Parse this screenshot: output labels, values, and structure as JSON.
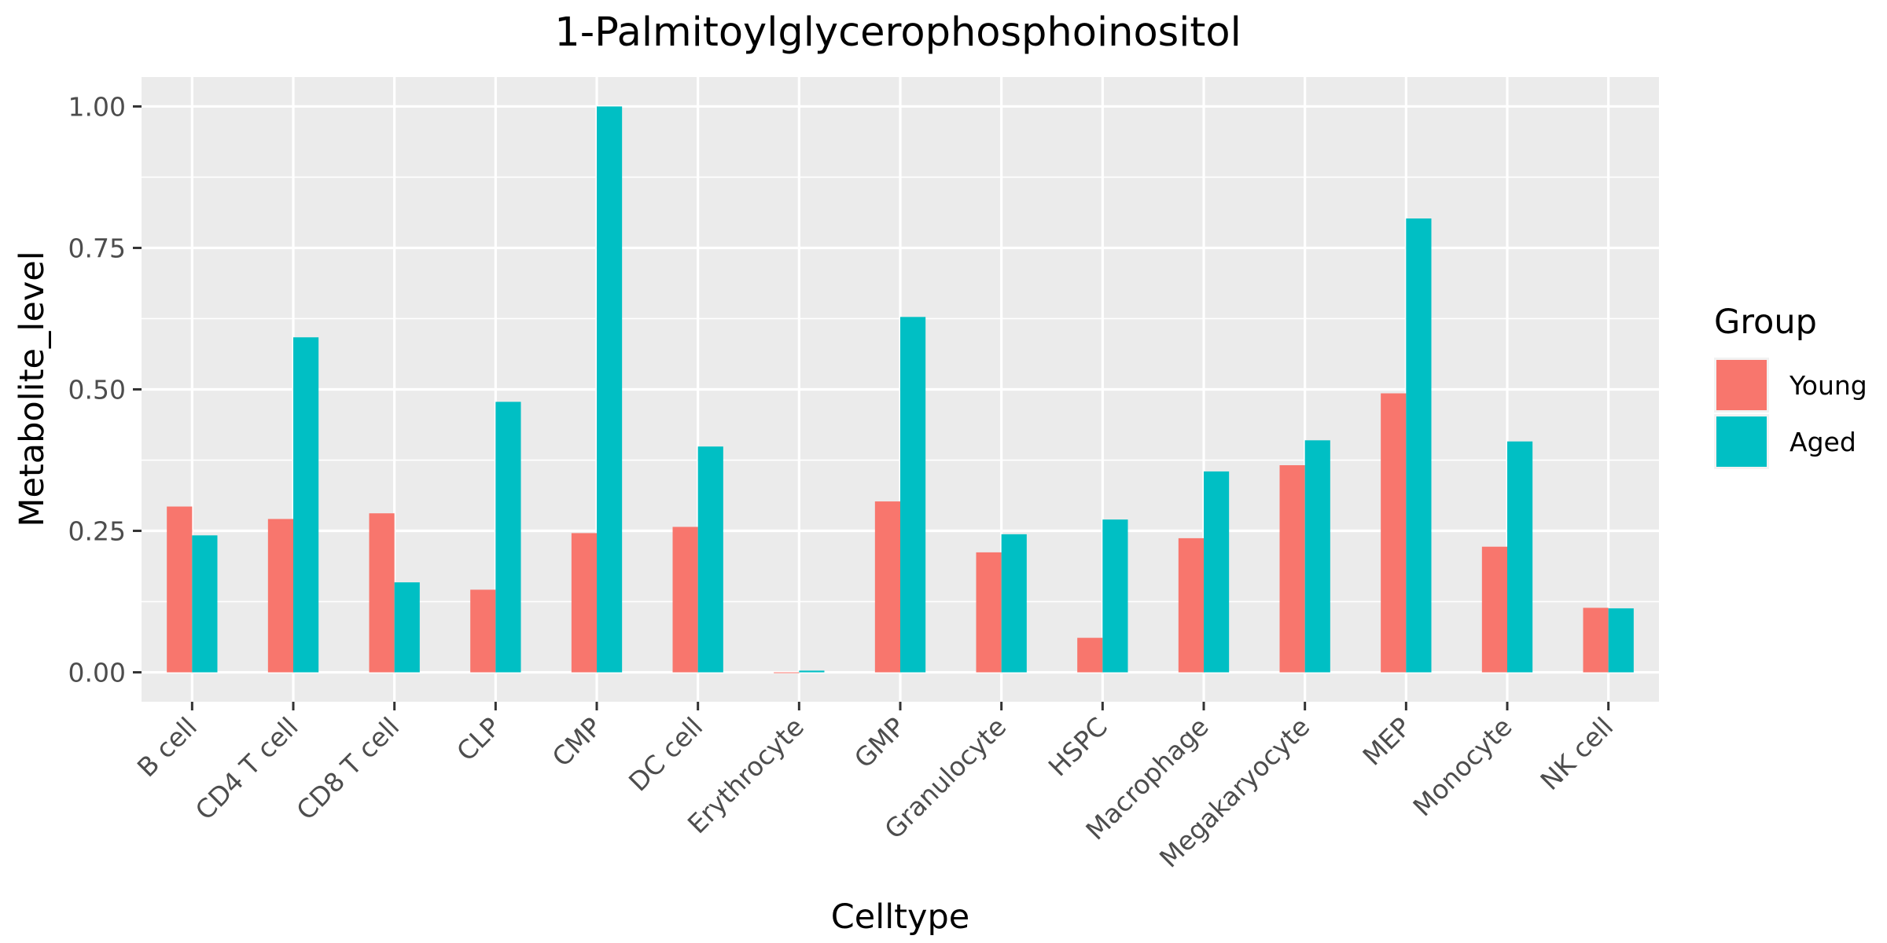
{
  "chart_data": {
    "type": "bar",
    "title": "1-Palmitoylglycerophosphoinositol",
    "xlabel": "Celltype",
    "ylabel": "Metabolite_level",
    "categories": [
      "B cell",
      "CD4 T cell",
      "CD8 T cell",
      "CLP",
      "CMP",
      "DC cell",
      "Erythrocyte",
      "GMP",
      "Granulocyte",
      "HSPC",
      "Macrophage",
      "Megakaryocyte",
      "MEP",
      "Monocyte",
      "NK cell"
    ],
    "series": [
      {
        "name": "Young",
        "color": "#F8766D",
        "values": [
          0.293,
          0.271,
          0.281,
          0.146,
          0.246,
          0.257,
          0.0,
          0.302,
          0.212,
          0.061,
          0.237,
          0.366,
          0.493,
          0.222,
          0.114
        ]
      },
      {
        "name": "Aged",
        "color": "#00BFC4",
        "values": [
          0.242,
          0.592,
          0.159,
          0.478,
          1.0,
          0.399,
          0.003,
          0.628,
          0.244,
          0.27,
          0.355,
          0.41,
          0.802,
          0.408,
          0.113
        ]
      }
    ],
    "ylim": [
      -0.052,
      1.052
    ],
    "yticks": [
      0.0,
      0.25,
      0.5,
      0.75,
      1.0
    ],
    "ytick_labels": [
      "0.00",
      "0.25",
      "0.50",
      "0.75",
      "1.00"
    ],
    "legend": {
      "title": "Group",
      "position": "right"
    },
    "grid": true,
    "panel_background": "#EBEBEB",
    "grid_color": "#FFFFFF"
  }
}
